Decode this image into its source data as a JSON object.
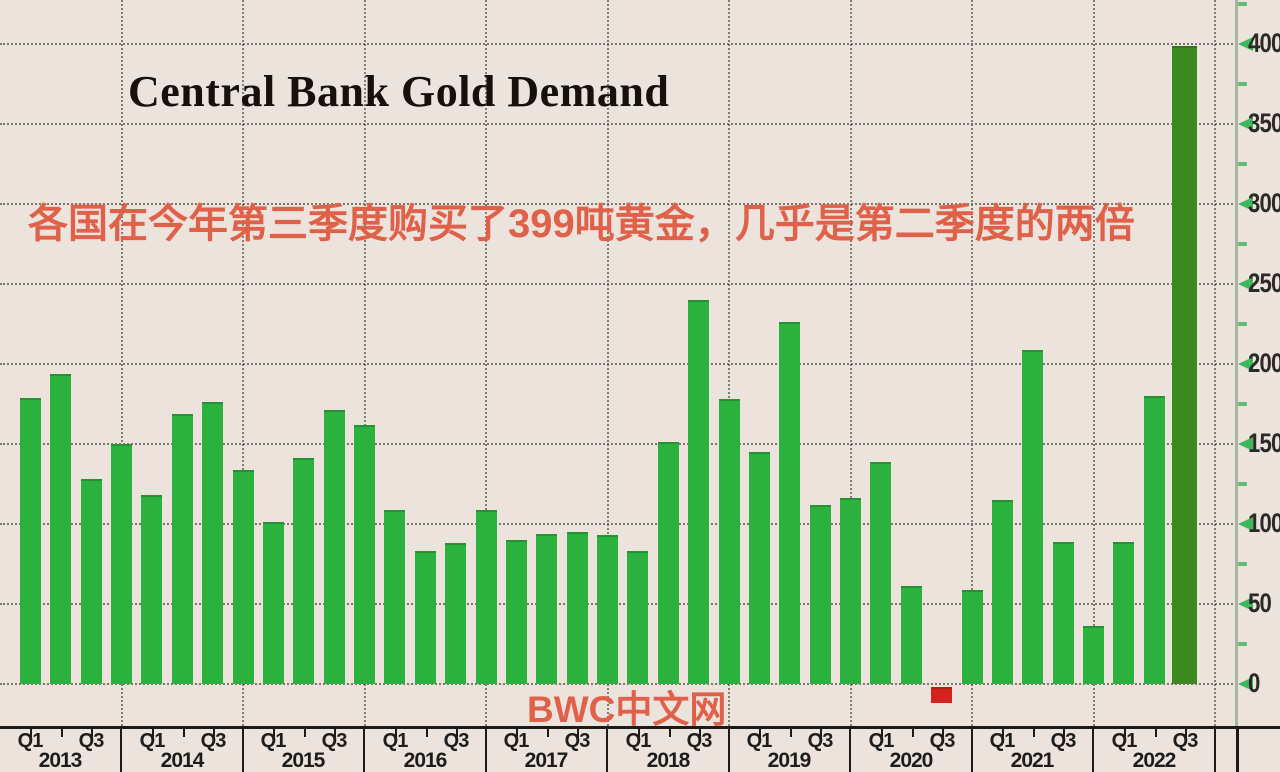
{
  "colors": {
    "background": "#ece4dc",
    "bar_green": "#2ab13e",
    "bar_dark_green": "#3a8a1e",
    "bar_red": "#d4231e",
    "accent_red_text": "#e0614a",
    "grid_dots": "#56544c",
    "axis_line": "#a9b5a4",
    "tick_arrow_green": "#3db85c",
    "tick_label_ink": "#2c2a27",
    "strip_line": "#1b1b1b"
  },
  "chart_data": {
    "type": "bar",
    "title": "Central Bank Gold Demand",
    "subtitle": "各国在今年第三季度购买了399吨黄金，几乎是第二季度的两倍",
    "watermark": "BWC中文网",
    "ylim": [
      -26,
      427
    ],
    "yticks": [
      0,
      50,
      100,
      150,
      200,
      250,
      300,
      350,
      400
    ],
    "minor_ytick_step": 25,
    "grid": "dotted, horizontal every 50 and vertical per year",
    "legend": "none",
    "yaxis_position": "right",
    "quarter_tick_labels": [
      "Q1",
      "Q3"
    ],
    "groups": [
      {
        "year": "2013",
        "values": [
          179,
          194,
          128,
          150
        ]
      },
      {
        "year": "2014",
        "values": [
          118,
          169,
          176,
          134
        ]
      },
      {
        "year": "2015",
        "values": [
          101,
          141,
          171,
          162
        ]
      },
      {
        "year": "2016",
        "values": [
          109,
          83,
          88,
          109
        ]
      },
      {
        "year": "2017",
        "values": [
          90,
          94,
          95,
          93
        ]
      },
      {
        "year": "2018",
        "values": [
          83,
          151,
          240,
          178
        ]
      },
      {
        "year": "2019",
        "values": [
          145,
          226,
          112,
          116
        ]
      },
      {
        "year": "2020",
        "values": [
          139,
          61,
          -12,
          59
        ]
      },
      {
        "year": "2021",
        "values": [
          115,
          209,
          89,
          36
        ]
      },
      {
        "year": "2022",
        "values": [
          89,
          180,
          399
        ]
      }
    ],
    "bar_colors": {
      "default": "#2ab13e",
      "2020-Q3": "#d4231e",
      "2022-Q3": "#3a8a1e"
    }
  }
}
